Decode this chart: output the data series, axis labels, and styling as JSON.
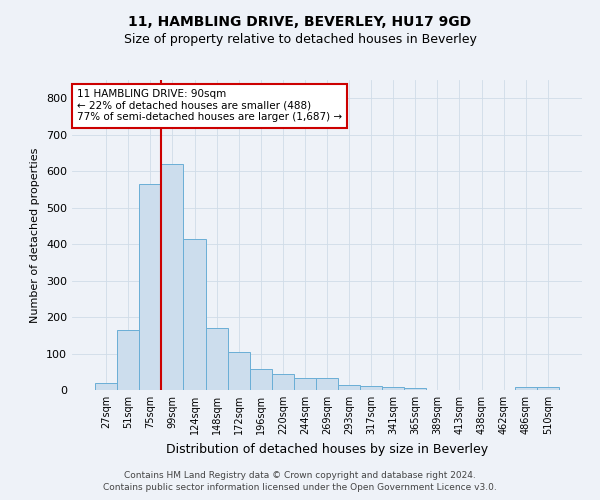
{
  "title": "11, HAMBLING DRIVE, BEVERLEY, HU17 9GD",
  "subtitle": "Size of property relative to detached houses in Beverley",
  "xlabel": "Distribution of detached houses by size in Beverley",
  "ylabel": "Number of detached properties",
  "categories": [
    "27sqm",
    "51sqm",
    "75sqm",
    "99sqm",
    "124sqm",
    "148sqm",
    "172sqm",
    "196sqm",
    "220sqm",
    "244sqm",
    "269sqm",
    "293sqm",
    "317sqm",
    "341sqm",
    "365sqm",
    "389sqm",
    "413sqm",
    "438sqm",
    "462sqm",
    "486sqm",
    "510sqm"
  ],
  "values": [
    18,
    165,
    565,
    620,
    415,
    170,
    103,
    57,
    45,
    33,
    33,
    15,
    10,
    8,
    5,
    0,
    0,
    0,
    0,
    7,
    8
  ],
  "bar_color": "#ccdded",
  "bar_edge_color": "#6aaed6",
  "vline_color": "#cc0000",
  "vline_x_index": 3,
  "annotation_line1": "11 HAMBLING DRIVE: 90sqm",
  "annotation_line2": "← 22% of detached houses are smaller (488)",
  "annotation_line3": "77% of semi-detached houses are larger (1,687) →",
  "annotation_box_facecolor": "#ffffff",
  "annotation_box_edgecolor": "#cc0000",
  "ylim": [
    0,
    850
  ],
  "yticks": [
    0,
    100,
    200,
    300,
    400,
    500,
    600,
    700,
    800
  ],
  "grid_color": "#d0dce8",
  "bg_color": "#eef2f8",
  "plot_bg_color": "#eef2f8",
  "footer_line1": "Contains HM Land Registry data © Crown copyright and database right 2024.",
  "footer_line2": "Contains public sector information licensed under the Open Government Licence v3.0.",
  "title_fontsize": 10,
  "subtitle_fontsize": 9,
  "ylabel_fontsize": 8,
  "xlabel_fontsize": 9,
  "tick_fontsize": 7,
  "footer_fontsize": 6.5
}
